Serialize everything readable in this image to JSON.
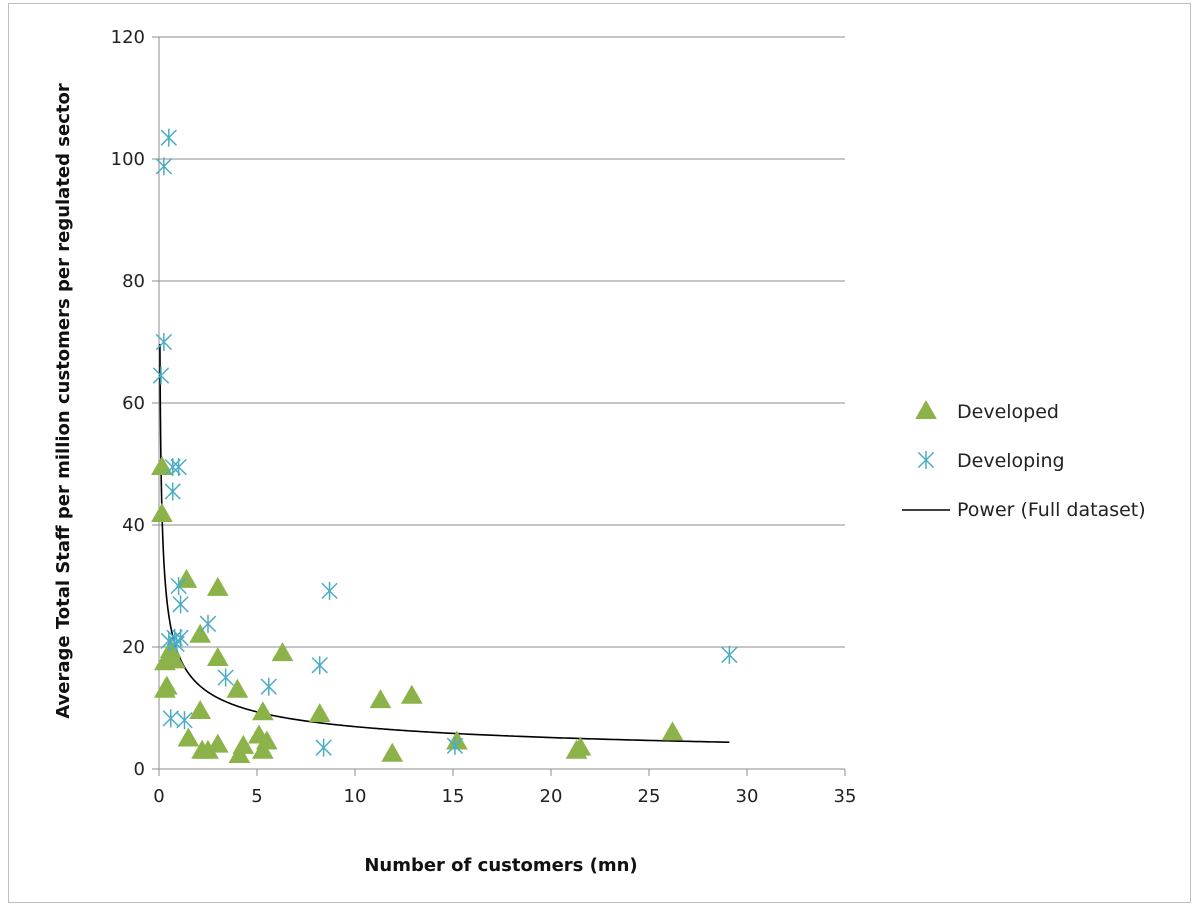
{
  "chart_data": {
    "type": "scatter",
    "title": "",
    "xlabel": "Number of customers (mn)",
    "ylabel": "Average Total Staff per million customers per regulated sector",
    "xlim": [
      0,
      35
    ],
    "ylim": [
      0,
      120
    ],
    "x_ticks": [
      "0",
      "5",
      "10",
      "15",
      "20",
      "25",
      "30",
      "35"
    ],
    "y_ticks": [
      "0",
      "20",
      "40",
      "60",
      "80",
      "100",
      "120"
    ],
    "grid": "horizontal",
    "legend_position": "right",
    "series": [
      {
        "name": "Developed",
        "marker": "triangle",
        "color": "#8BB34A",
        "points": [
          [
            0.15,
            49.5
          ],
          [
            0.15,
            41.8
          ],
          [
            0.3,
            17.5
          ],
          [
            0.3,
            13.0
          ],
          [
            0.4,
            13.5
          ],
          [
            0.5,
            18.0
          ],
          [
            0.6,
            19.5
          ],
          [
            0.8,
            17.8
          ],
          [
            1.4,
            31.0
          ],
          [
            1.5,
            5.0
          ],
          [
            2.1,
            22.0
          ],
          [
            2.1,
            9.5
          ],
          [
            2.2,
            3.0
          ],
          [
            2.5,
            3.0
          ],
          [
            3.0,
            29.7
          ],
          [
            3.0,
            18.2
          ],
          [
            3.0,
            4.0
          ],
          [
            4.0,
            13.0
          ],
          [
            4.1,
            2.3
          ],
          [
            4.3,
            3.8
          ],
          [
            5.1,
            5.5
          ],
          [
            5.3,
            9.3
          ],
          [
            5.3,
            3.0
          ],
          [
            5.5,
            4.5
          ],
          [
            6.3,
            19.0
          ],
          [
            8.2,
            9.0
          ],
          [
            11.3,
            11.3
          ],
          [
            11.9,
            2.5
          ],
          [
            12.9,
            12.0
          ],
          [
            15.2,
            4.5
          ],
          [
            21.3,
            3.0
          ],
          [
            21.5,
            3.5
          ],
          [
            26.2,
            6.0
          ]
        ]
      },
      {
        "name": "Developing",
        "marker": "asterisk",
        "color": "#4BACC6",
        "points": [
          [
            0.5,
            103.5
          ],
          [
            0.25,
            98.8
          ],
          [
            0.25,
            70.0
          ],
          [
            0.1,
            64.5
          ],
          [
            0.7,
            49.5
          ],
          [
            1.0,
            49.5
          ],
          [
            0.7,
            45.5
          ],
          [
            1.0,
            30.0
          ],
          [
            1.1,
            27.0
          ],
          [
            2.5,
            23.8
          ],
          [
            0.5,
            21.0
          ],
          [
            0.8,
            21.5
          ],
          [
            1.1,
            21.5
          ],
          [
            0.9,
            20.5
          ],
          [
            3.4,
            15.0
          ],
          [
            5.6,
            13.5
          ],
          [
            0.6,
            8.3
          ],
          [
            1.3,
            8.0
          ],
          [
            8.7,
            29.2
          ],
          [
            8.2,
            17.0
          ],
          [
            8.4,
            3.5
          ],
          [
            15.1,
            3.8
          ],
          [
            29.1,
            18.7
          ]
        ]
      },
      {
        "name": "Power (Full dataset)",
        "type": "trendline",
        "color": "#000000",
        "equation": "y = a * x^b",
        "a": 18.7,
        "b": -0.43,
        "x_range": [
          0.02,
          29.1
        ]
      }
    ]
  }
}
